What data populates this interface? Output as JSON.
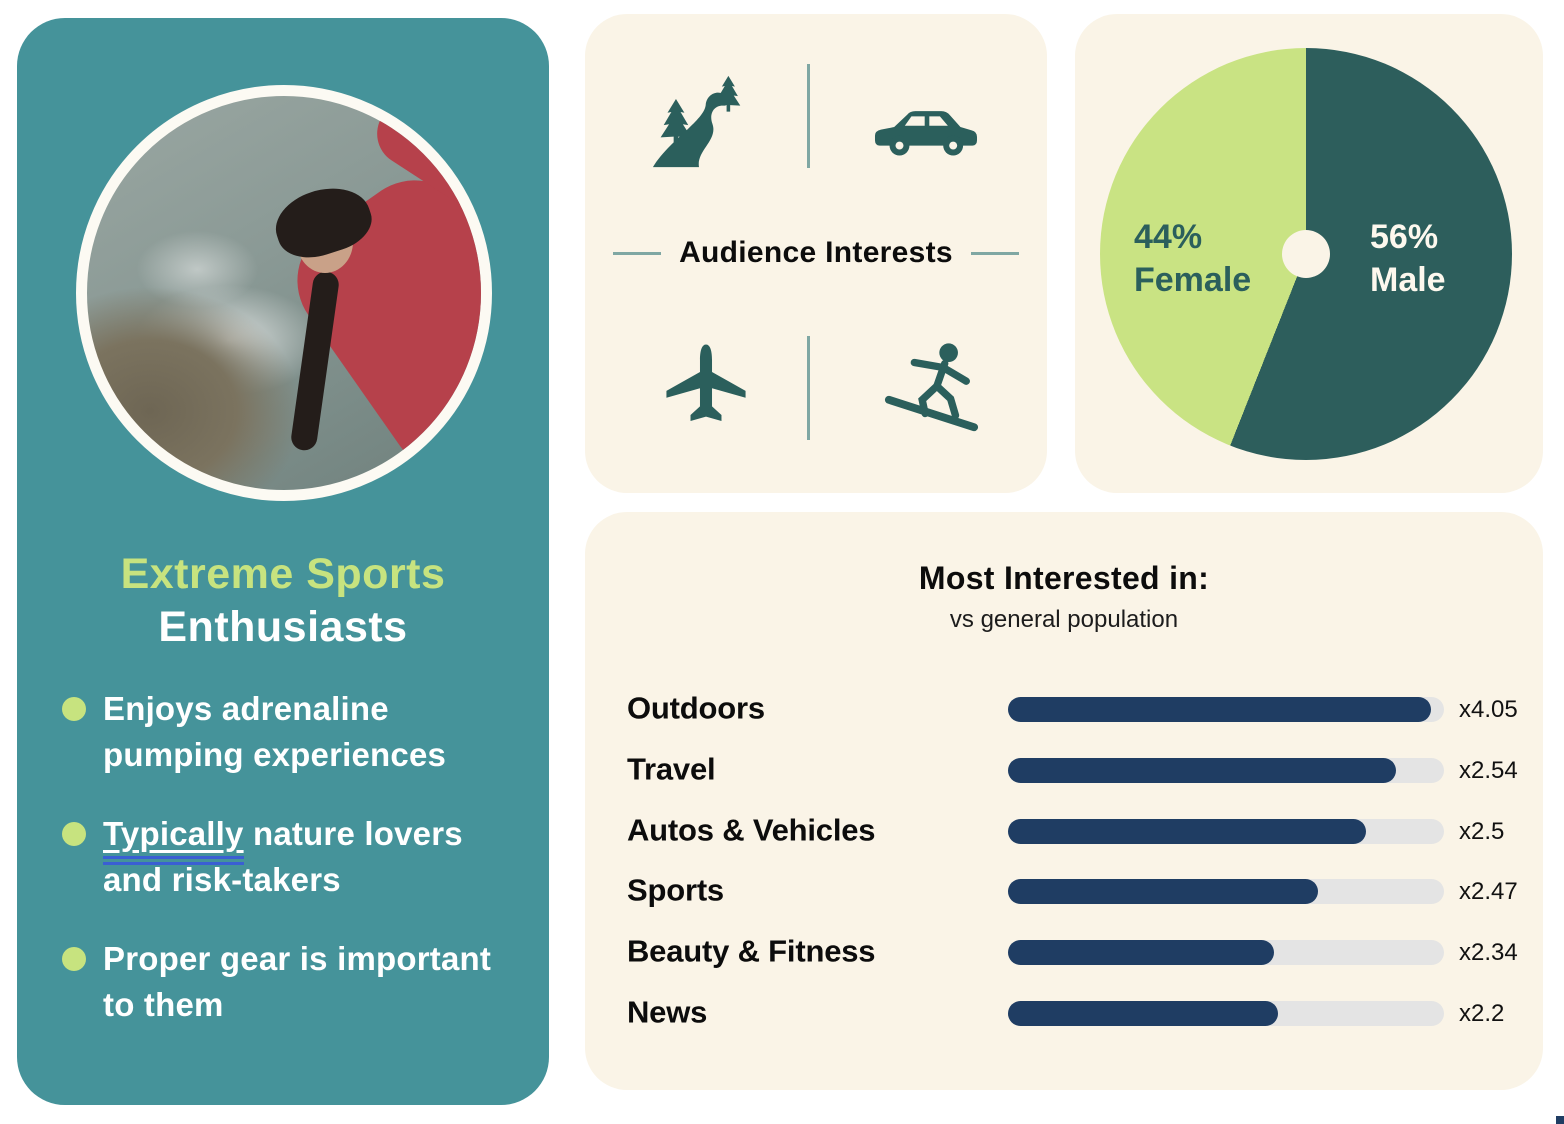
{
  "palette": {
    "page_bg": "#ffffff",
    "card_bg": "#faf4e7",
    "teal_panel": "#45939a",
    "accent_green": "#c7e37f",
    "dark_teal": "#2b5f5c",
    "navy_bar": "#1f3d63",
    "bar_track": "#e4e4e4",
    "divider_teal": "#7fa7a3",
    "underline_blue": "#3a5fd3",
    "cream_text": "#fdf8ee"
  },
  "persona_card": {
    "title_accent": "Extreme Sports",
    "title_rest": "Enthusiasts",
    "photo_subject": "woman rock climbing above the ocean",
    "bullets": [
      {
        "underlined": "",
        "text": "Enjoys adrenaline pumping experiences"
      },
      {
        "underlined": "Typically",
        "text": " nature lovers and risk-takers"
      },
      {
        "underlined": "",
        "text": "Proper gear is important to them"
      }
    ]
  },
  "audience_interests": {
    "title": "Audience Interests",
    "icons": [
      "road-through-forest",
      "car",
      "airplane",
      "surfer"
    ]
  },
  "chart_data": [
    {
      "type": "pie",
      "labels": [
        "Female",
        "Male"
      ],
      "values": [
        44,
        56
      ],
      "pct_labels": [
        "44%",
        "56%"
      ],
      "colors": [
        "#c9e383",
        "#2d5e5c"
      ],
      "donut_hole": true,
      "start_angle_deg": 0,
      "legend_position": "on-slice"
    },
    {
      "type": "bar",
      "orientation": "horizontal",
      "title": "Most Interested in:",
      "subtitle": "vs general population",
      "categories": [
        "Outdoors",
        "Travel",
        "Autos & Vehicles",
        "Sports",
        "Beauty & Fitness",
        "News"
      ],
      "values": [
        4.05,
        2.54,
        2.5,
        2.47,
        2.34,
        2.2
      ],
      "value_labels": [
        "x4.05",
        "x2.54",
        "x2.5",
        "x2.47",
        "x2.34",
        "x2.2"
      ],
      "bar_fill_pct": [
        97,
        89,
        82,
        71,
        61,
        62
      ],
      "bar_color": "#1f3d63",
      "track_color": "#e4e4e4",
      "grid": false
    }
  ]
}
